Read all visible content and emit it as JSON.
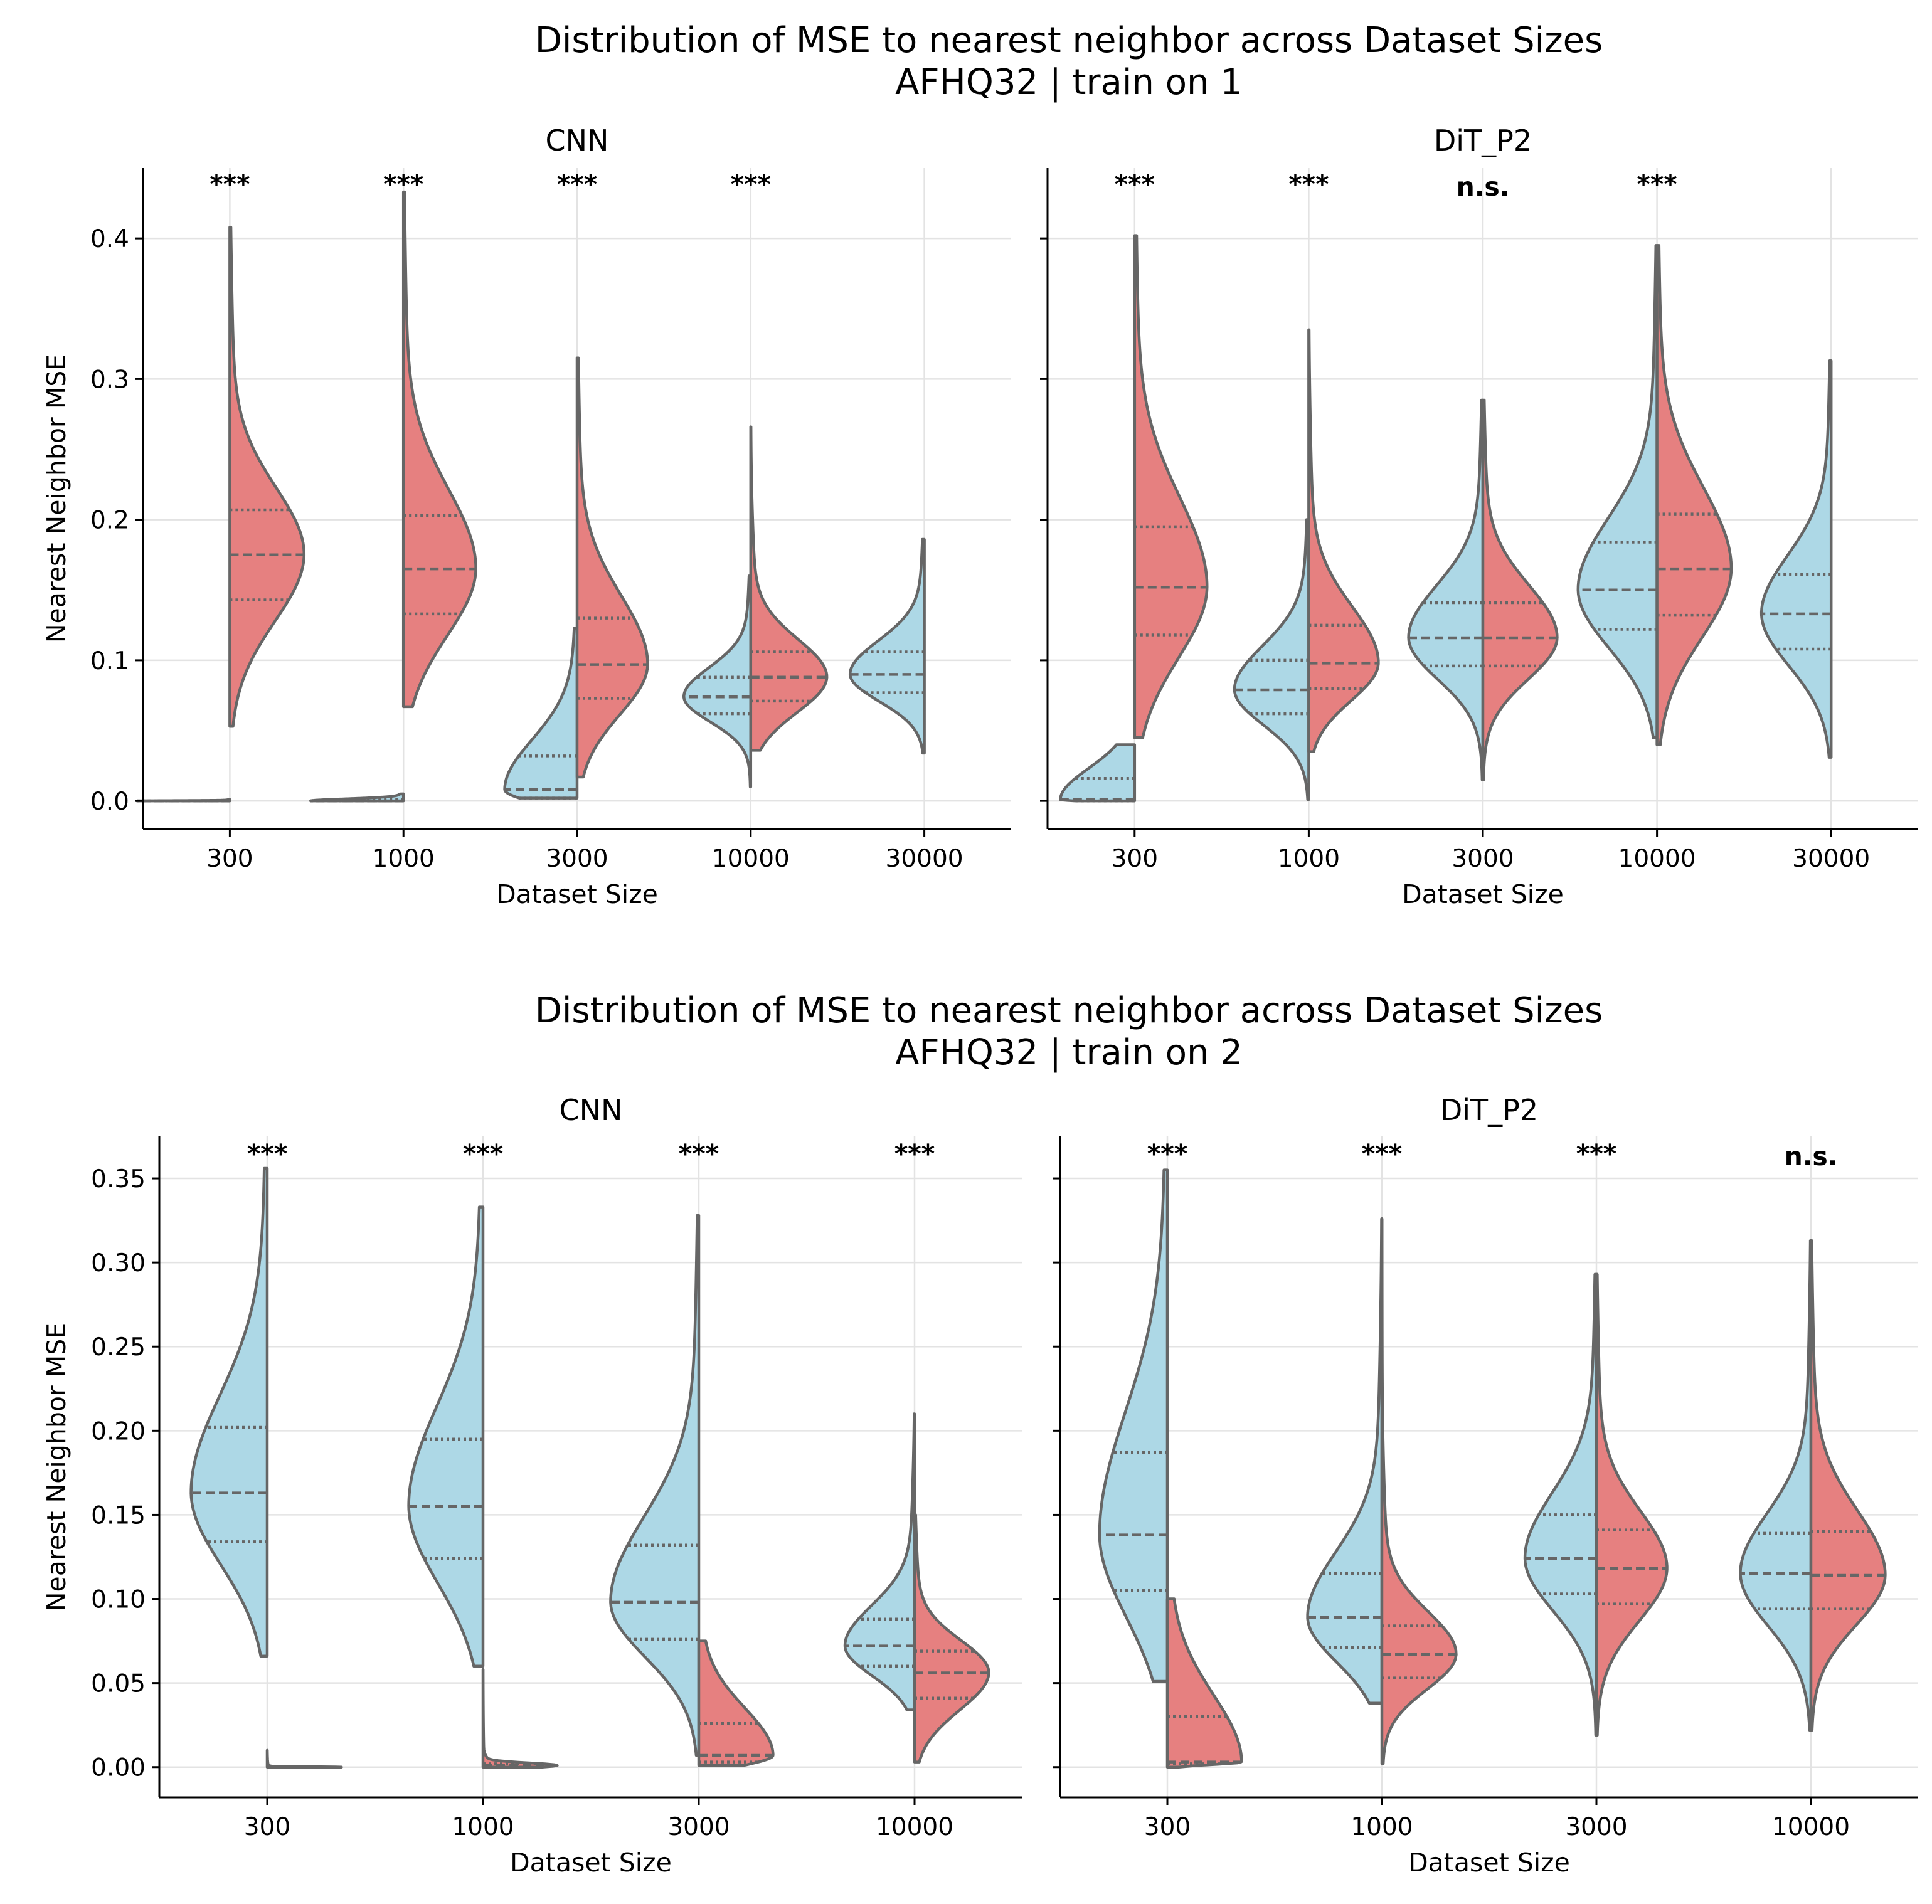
{
  "colors": {
    "left_half": "#add8e6",
    "right_half": "#e68080",
    "edge": "#666666",
    "grid": "#e3e3e3"
  },
  "figure": {
    "sections": [
      {
        "title_line1": "Distribution of MSE to nearest neighbor across Dataset Sizes",
        "title_line2": "AFHQ32 | train on 1",
        "panels": [
          {
            "title": "CNN",
            "xlabel": "Dataset Size",
            "ylabel": "Nearest Neighbor MSE"
          },
          {
            "title": "DiT_P2",
            "xlabel": "Dataset Size",
            "ylabel": ""
          }
        ]
      },
      {
        "title_line1": "Distribution of MSE to nearest neighbor across Dataset Sizes",
        "title_line2": "AFHQ32 | train on 2",
        "panels": [
          {
            "title": "CNN",
            "xlabel": "Dataset Size",
            "ylabel": "Nearest Neighbor MSE"
          },
          {
            "title": "DiT_P2",
            "xlabel": "Dataset Size",
            "ylabel": ""
          }
        ]
      }
    ]
  },
  "chart_data": [
    {
      "type": "violin",
      "split": true,
      "title": "CNN",
      "section": "train on 1",
      "xlabel": "Dataset Size",
      "ylabel": "Nearest Neighbor MSE",
      "categories": [
        "300",
        "1000",
        "3000",
        "10000",
        "30000"
      ],
      "ylim": [
        -0.02,
        0.45
      ],
      "yticks": [
        "0.0",
        "0.1",
        "0.2",
        "0.3",
        "0.4"
      ],
      "grid": true,
      "violins": [
        {
          "category": "300",
          "significance": "***",
          "left": {
            "min": 0.0,
            "max": 0.001,
            "q1": 0.0,
            "median": 0.0,
            "q3": 0.0,
            "width": 1.0
          },
          "right": {
            "min": 0.053,
            "max": 0.408,
            "q1": 0.143,
            "median": 0.175,
            "q3": 0.207,
            "width": 0.8
          }
        },
        {
          "category": "1000",
          "significance": "***",
          "left": {
            "min": 0.0,
            "max": 0.005,
            "q1": 0.0,
            "median": 0.0,
            "q3": 0.001,
            "width": 1.0
          },
          "right": {
            "min": 0.067,
            "max": 0.433,
            "q1": 0.133,
            "median": 0.165,
            "q3": 0.203,
            "width": 0.78
          }
        },
        {
          "category": "3000",
          "significance": "***",
          "left": {
            "min": 0.002,
            "max": 0.123,
            "q1": 0.002,
            "median": 0.008,
            "q3": 0.032,
            "width": 0.78
          },
          "right": {
            "min": 0.017,
            "max": 0.315,
            "q1": 0.073,
            "median": 0.097,
            "q3": 0.13,
            "width": 0.76
          }
        },
        {
          "category": "10000",
          "significance": "***",
          "left": {
            "min": 0.01,
            "max": 0.16,
            "q1": 0.062,
            "median": 0.074,
            "q3": 0.088,
            "width": 0.72
          },
          "right": {
            "min": 0.036,
            "max": 0.266,
            "q1": 0.071,
            "median": 0.088,
            "q3": 0.106,
            "width": 0.82
          }
        },
        {
          "category": "30000",
          "significance": "",
          "left": {
            "min": 0.034,
            "max": 0.186,
            "q1": 0.077,
            "median": 0.09,
            "q3": 0.106,
            "width": 0.8
          }
        }
      ]
    },
    {
      "type": "violin",
      "split": true,
      "title": "DiT_P2",
      "section": "train on 1",
      "xlabel": "Dataset Size",
      "ylabel": "",
      "categories": [
        "300",
        "1000",
        "3000",
        "10000",
        "30000"
      ],
      "ylim": [
        -0.02,
        0.45
      ],
      "yticks": [
        "0.0",
        "0.1",
        "0.2",
        "0.3",
        "0.4"
      ],
      "grid": true,
      "violins": [
        {
          "category": "300",
          "significance": "***",
          "left": {
            "min": 0.0,
            "max": 0.04,
            "q1": 0.0,
            "median": 0.001,
            "q3": 0.016,
            "width": 0.8
          },
          "right": {
            "min": 0.045,
            "max": 0.402,
            "q1": 0.118,
            "median": 0.152,
            "q3": 0.195,
            "width": 0.78
          }
        },
        {
          "category": "1000",
          "significance": "***",
          "left": {
            "min": 0.001,
            "max": 0.2,
            "q1": 0.062,
            "median": 0.079,
            "q3": 0.1,
            "width": 0.8
          },
          "right": {
            "min": 0.035,
            "max": 0.335,
            "q1": 0.08,
            "median": 0.098,
            "q3": 0.125,
            "width": 0.75
          }
        },
        {
          "category": "3000",
          "significance": "n.s.",
          "left": {
            "min": 0.015,
            "max": 0.285,
            "q1": 0.096,
            "median": 0.116,
            "q3": 0.141,
            "width": 0.8
          },
          "right": {
            "min": 0.015,
            "max": 0.285,
            "q1": 0.096,
            "median": 0.116,
            "q3": 0.141,
            "width": 0.8
          }
        },
        {
          "category": "10000",
          "significance": "***",
          "left": {
            "min": 0.045,
            "max": 0.395,
            "q1": 0.122,
            "median": 0.15,
            "q3": 0.184,
            "width": 0.85
          },
          "right": {
            "min": 0.04,
            "max": 0.395,
            "q1": 0.132,
            "median": 0.165,
            "q3": 0.204,
            "width": 0.8
          }
        },
        {
          "category": "30000",
          "significance": "",
          "left": {
            "min": 0.031,
            "max": 0.313,
            "q1": 0.108,
            "median": 0.133,
            "q3": 0.161,
            "width": 0.75
          }
        }
      ]
    },
    {
      "type": "violin",
      "split": true,
      "title": "CNN",
      "section": "train on 2",
      "xlabel": "Dataset Size",
      "ylabel": "Nearest Neighbor MSE",
      "categories": [
        "300",
        "1000",
        "3000",
        "10000"
      ],
      "ylim": [
        -0.018,
        0.375
      ],
      "yticks": [
        "0.00",
        "0.05",
        "0.10",
        "0.15",
        "0.20",
        "0.25",
        "0.30",
        "0.35"
      ],
      "grid": true,
      "violins": [
        {
          "category": "300",
          "significance": "***",
          "left": {
            "min": 0.066,
            "max": 0.356,
            "q1": 0.134,
            "median": 0.163,
            "q3": 0.202,
            "width": 0.82
          },
          "right": {
            "min": 0.0,
            "max": 0.01,
            "q1": 0.0,
            "median": 0.0,
            "q3": 0.0,
            "width": 0.8
          }
        },
        {
          "category": "1000",
          "significance": "***",
          "left": {
            "min": 0.06,
            "max": 0.333,
            "q1": 0.124,
            "median": 0.155,
            "q3": 0.195,
            "width": 0.8
          },
          "right": {
            "min": 0.0,
            "max": 0.058,
            "q1": 0.0,
            "median": 0.001,
            "q3": 0.002,
            "width": 0.8
          }
        },
        {
          "category": "3000",
          "significance": "***",
          "left": {
            "min": 0.007,
            "max": 0.328,
            "q1": 0.076,
            "median": 0.098,
            "q3": 0.132,
            "width": 0.95
          },
          "right": {
            "min": 0.001,
            "max": 0.075,
            "q1": 0.003,
            "median": 0.007,
            "q3": 0.026,
            "width": 0.8
          }
        },
        {
          "category": "10000",
          "significance": "***",
          "left": {
            "min": 0.034,
            "max": 0.21,
            "q1": 0.06,
            "median": 0.072,
            "q3": 0.088,
            "width": 0.75
          },
          "right": {
            "min": 0.003,
            "max": 0.15,
            "q1": 0.041,
            "median": 0.056,
            "q3": 0.069,
            "width": 0.8
          }
        }
      ]
    },
    {
      "type": "violin",
      "split": true,
      "title": "DiT_P2",
      "section": "train on 2",
      "xlabel": "Dataset Size",
      "ylabel": "",
      "categories": [
        "300",
        "1000",
        "3000",
        "10000"
      ],
      "ylim": [
        -0.018,
        0.375
      ],
      "yticks": [
        "0.00",
        "0.05",
        "0.10",
        "0.15",
        "0.20",
        "0.25",
        "0.30",
        "0.35"
      ],
      "grid": true,
      "violins": [
        {
          "category": "300",
          "significance": "***",
          "left": {
            "min": 0.051,
            "max": 0.355,
            "q1": 0.105,
            "median": 0.138,
            "q3": 0.187,
            "width": 0.73
          },
          "right": {
            "min": 0.0,
            "max": 0.1,
            "q1": 0.002,
            "median": 0.003,
            "q3": 0.03,
            "width": 0.8
          }
        },
        {
          "category": "1000",
          "significance": "***",
          "left": {
            "min": 0.038,
            "max": 0.326,
            "q1": 0.071,
            "median": 0.089,
            "q3": 0.115,
            "width": 0.8
          },
          "right": {
            "min": 0.002,
            "max": 0.326,
            "q1": 0.053,
            "median": 0.067,
            "q3": 0.084,
            "width": 0.8
          }
        },
        {
          "category": "3000",
          "significance": "***",
          "left": {
            "min": 0.019,
            "max": 0.293,
            "q1": 0.103,
            "median": 0.124,
            "q3": 0.15,
            "width": 0.77
          },
          "right": {
            "min": 0.019,
            "max": 0.293,
            "q1": 0.097,
            "median": 0.118,
            "q3": 0.141,
            "width": 0.76
          }
        },
        {
          "category": "10000",
          "significance": "n.s.",
          "left": {
            "min": 0.022,
            "max": 0.313,
            "q1": 0.094,
            "median": 0.115,
            "q3": 0.139,
            "width": 0.76
          },
          "right": {
            "min": 0.022,
            "max": 0.313,
            "q1": 0.094,
            "median": 0.114,
            "q3": 0.14,
            "width": 0.8
          }
        }
      ]
    }
  ]
}
